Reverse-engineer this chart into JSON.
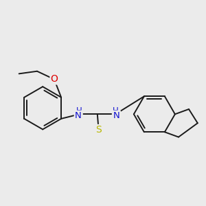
{
  "background_color": "#ebebeb",
  "bond_color": "#1a1a1a",
  "bond_width": 1.4,
  "atom_colors": {
    "N": "#1010d0",
    "O": "#dd0000",
    "S": "#b8b800",
    "C": "#1a1a1a"
  },
  "font_size_NH": 9.5,
  "font_size_O": 10,
  "font_size_S": 10,
  "figsize": [
    3.0,
    3.0
  ],
  "dpi": 100
}
